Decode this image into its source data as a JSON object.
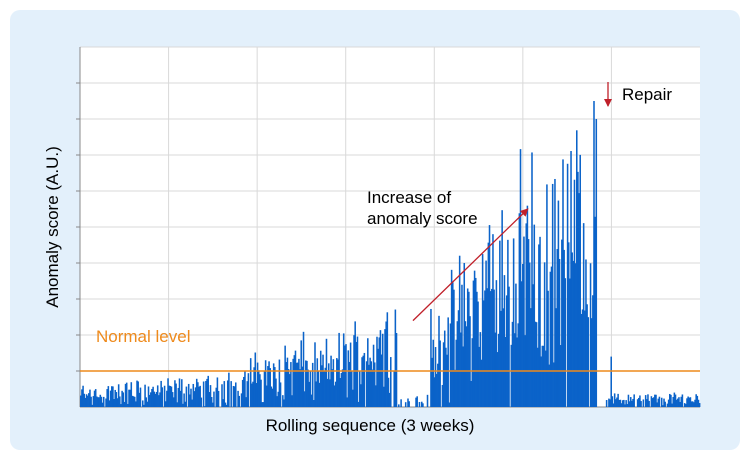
{
  "colors": {
    "card_background": "#e3f0fb",
    "bars": "#0b63c9",
    "normal_level_line": "#ee8a1c",
    "normal_level_text": "#ee8a1c",
    "arrows": "#c0202a",
    "grid": "#d9d9d9",
    "plot_background": "#ffffff"
  },
  "chart_data": {
    "type": "bar",
    "title": "",
    "xlabel": "Rolling sequence (3 weeks)",
    "ylabel": "Anomaly score (A.U.)",
    "ylim": [
      0,
      10
    ],
    "y_tick_labels": "none",
    "x_tick_labels": "none",
    "grid": true,
    "n_points": 540,
    "normal_level": {
      "label": "Normal level",
      "value": 1.0
    },
    "annotations": [
      {
        "text": "Increase of anomaly score",
        "kind": "diagonal-arrow",
        "from": {
          "x": 290,
          "y": 2.4
        },
        "to": {
          "x": 390,
          "y": 5.5
        }
      },
      {
        "text": "Repair",
        "kind": "down-arrow",
        "from": {
          "x": 460,
          "y": 9.0
        },
        "to": {
          "x": 460,
          "y": 8.3
        }
      }
    ],
    "segments": [
      {
        "from": 0,
        "to": 125,
        "trend_start": 0.45,
        "trend_end": 0.7,
        "noise": 0.45,
        "gap_prob": 0.08
      },
      {
        "from": 125,
        "to": 198,
        "trend_start": 0.8,
        "trend_end": 1.6,
        "noise": 0.8,
        "gap_prob": 0.06
      },
      {
        "from": 198,
        "to": 276,
        "trend_start": 1.1,
        "trend_end": 2.5,
        "noise": 0.9,
        "gap_prob": 0.05
      },
      {
        "from": 276,
        "to": 305,
        "trend_start": 0.2,
        "trend_end": 0.3,
        "noise": 0.1,
        "gap_prob": 0.5
      },
      {
        "from": 305,
        "to": 395,
        "trend_start": 2.0,
        "trend_end": 6.0,
        "noise": 1.6,
        "gap_prob": 0.03
      },
      {
        "from": 395,
        "to": 450,
        "trend_start": 4.0,
        "trend_end": 7.8,
        "noise": 1.4,
        "gap_prob": 0.02
      },
      {
        "from": 450,
        "to": 458,
        "trend_start": 0.0,
        "trend_end": 0.0,
        "noise": 0.0,
        "gap_prob": 1.0
      },
      {
        "from": 458,
        "to": 540,
        "trend_start": 0.25,
        "trend_end": 0.3,
        "noise": 0.25,
        "gap_prob": 0.1
      }
    ],
    "highlights": [
      {
        "index": 334,
        "value": 4.0
      },
      {
        "index": 447,
        "value": 8.5
      },
      {
        "index": 449,
        "value": 8.0
      },
      {
        "index": 462,
        "value": 1.4
      }
    ]
  }
}
